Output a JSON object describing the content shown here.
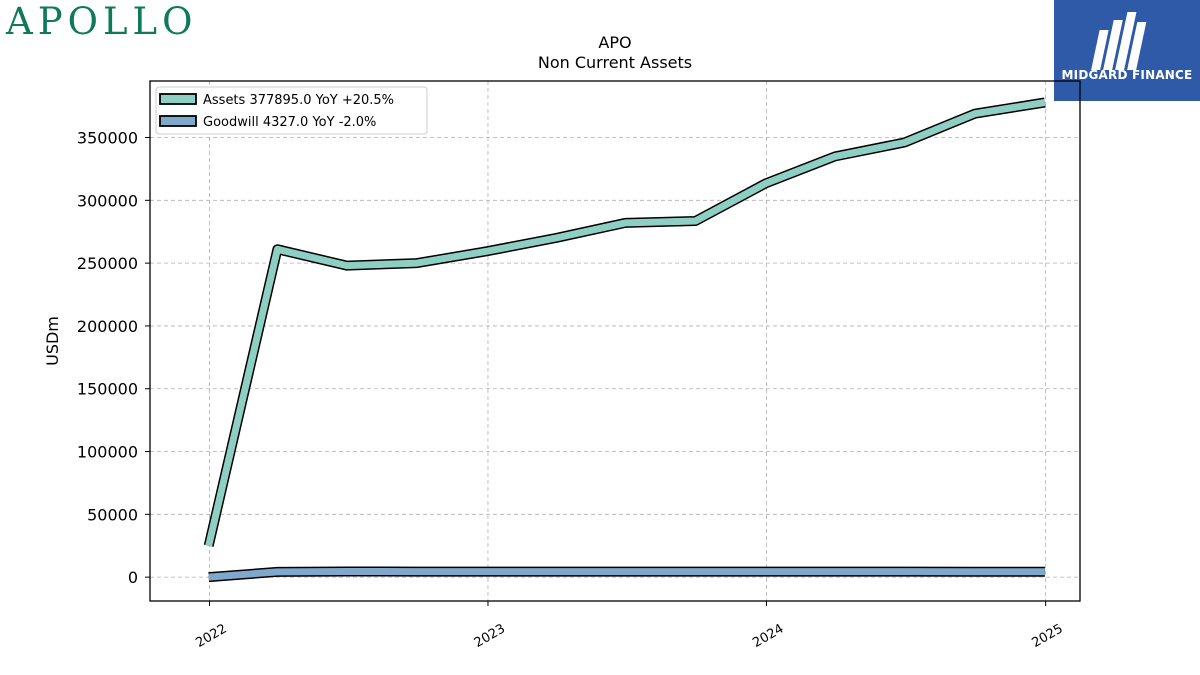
{
  "brand": {
    "name": "APOLLO",
    "logo_text": "MIDGARD FINANCE"
  },
  "colors": {
    "brand_green": "#0e7a5a",
    "logo_blue": "#2f5aa8",
    "assets": "#8ecfc3",
    "goodwill": "#7fa9cc",
    "grid": "#b0b0b0"
  },
  "chart_data": {
    "type": "line",
    "title": "APO",
    "subtitle": "Non Current  Assets",
    "xlabel": "",
    "ylabel": "USDm",
    "x_ticks": [
      "2022",
      "2023",
      "2024",
      "2025"
    ],
    "y_ticks": [
      "0",
      "50000",
      "100000",
      "150000",
      "200000",
      "250000",
      "300000",
      "350000"
    ],
    "ylim": [
      -19000,
      395000
    ],
    "xlim": [
      "2021-10-15",
      "2025-02-15"
    ],
    "grid": true,
    "legend_position": "top-left",
    "x": [
      "2021-12-31",
      "2022-03-31",
      "2022-06-30",
      "2022-09-30",
      "2022-12-31",
      "2023-03-31",
      "2023-06-30",
      "2023-09-30",
      "2023-12-31",
      "2024-03-31",
      "2024-06-30",
      "2024-09-30",
      "2024-12-31"
    ],
    "series": [
      {
        "name": "Assets  377895.0 YoY +20.5%",
        "color": "#8ecfc3",
        "values": [
          25000,
          261000,
          248000,
          250000,
          259500,
          270000,
          282000,
          283500,
          313500,
          335000,
          346000,
          369000,
          377895
        ]
      },
      {
        "name": "Goodwill  4327.0 YoY -2.0%",
        "color": "#7fa9cc",
        "values": [
          0,
          4200,
          4450,
          4420,
          4415,
          4400,
          4390,
          4380,
          4415,
          4400,
          4380,
          4350,
          4327
        ]
      }
    ]
  }
}
